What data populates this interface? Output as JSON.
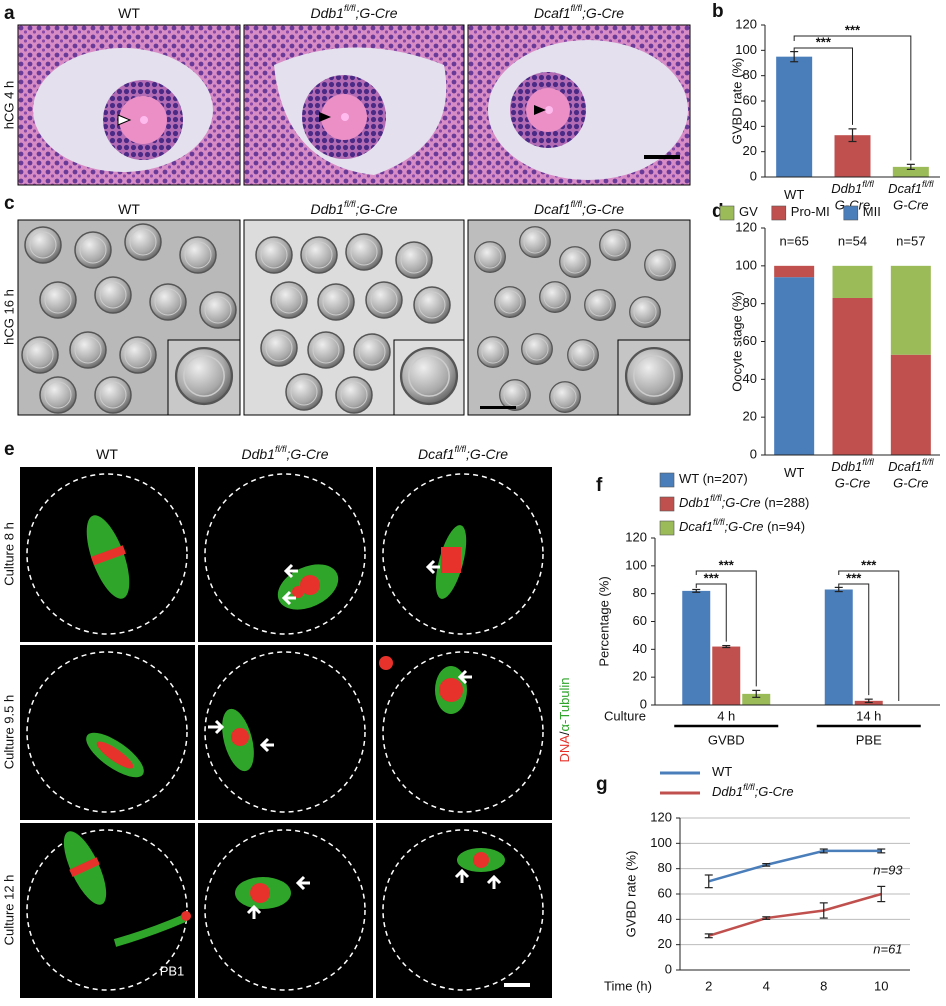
{
  "panel_a": {
    "label": "a",
    "row_label": "hCG 4 h"
  },
  "panel_c": {
    "label": "c",
    "row_label": "hCG 16 h"
  },
  "panel_e": {
    "label": "e",
    "row_labels": [
      "Culture 8 h",
      "Culture 9.5 h",
      "Culture 12 h"
    ],
    "stain": [
      "DNA",
      "/",
      "α-Tubulin"
    ],
    "pb_label": "PB1"
  },
  "genotypes": [
    {
      "name": "WT"
    },
    {
      "name": "Ddb1",
      "sup": "fl/fl",
      "suffix": ";G-Cre"
    },
    {
      "name": "Dcaf1",
      "sup": "fl/fl",
      "suffix": ";G-Cre"
    }
  ],
  "chart_data": [
    {
      "label": "b",
      "type": "bar",
      "ylabel": "GVBD rate (%)",
      "categories": [
        {
          "name": "WT"
        },
        {
          "name": "Ddb1",
          "sup": "fl/fl",
          "line2": "G-Cre"
        },
        {
          "name": "Dcaf1",
          "sup": "fl/fl",
          "line2": "G-Cre"
        }
      ],
      "values": [
        95,
        33,
        8
      ],
      "errors": [
        4,
        5,
        2
      ],
      "colors": [
        "#4a7ebb",
        "#c0504d",
        "#9bbb59"
      ],
      "ylim": [
        0,
        120
      ],
      "yticks": [
        0,
        20,
        40,
        60,
        80,
        100,
        120
      ],
      "annotations": [
        "***",
        "***"
      ]
    },
    {
      "label": "d",
      "type": "stacked_bar",
      "ylabel": "Oocyte stage (%)",
      "categories": [
        {
          "name": "WT"
        },
        {
          "name": "Ddb1",
          "sup": "fl/fl",
          "line2": "G-Cre"
        },
        {
          "name": "Dcaf1",
          "sup": "fl/fl",
          "line2": "G-Cre"
        }
      ],
      "series": [
        {
          "name": "MII",
          "color": "#4a7ebb",
          "values": [
            94,
            0,
            0
          ]
        },
        {
          "name": "Pro-MI",
          "color": "#c0504d",
          "values": [
            6,
            83,
            53
          ]
        },
        {
          "name": "GV",
          "color": "#9bbb59",
          "values": [
            0,
            17,
            47
          ]
        }
      ],
      "ylim": [
        0,
        120
      ],
      "yticks": [
        0,
        20,
        40,
        60,
        80,
        100,
        120
      ],
      "annotations": [
        "n=65",
        "n=54",
        "n=57"
      ]
    },
    {
      "label": "f",
      "type": "grouped_bar",
      "ylabel": "Percentage (%)",
      "x_row_label": "Culture",
      "categories": [
        "4 h",
        "14 h"
      ],
      "groups": [
        "GVBD",
        "PBE"
      ],
      "series": [
        {
          "name": "WT",
          "note": " (n=207)",
          "color": "#4a7ebb",
          "values": [
            82,
            83
          ],
          "errors": [
            1,
            1.5
          ]
        },
        {
          "name": "Ddb1",
          "sup": "fl/fl",
          "suffix": ";G-Cre",
          "note": " (n=288)",
          "color": "#c0504d",
          "values": [
            42,
            3
          ],
          "errors": [
            0.7,
            1.2
          ]
        },
        {
          "name": "Dcaf1",
          "sup": "fl/fl",
          "suffix": ";G-Cre",
          "note": " (n=94)",
          "color": "#9bbb59",
          "values": [
            8,
            0
          ],
          "errors": [
            2.5,
            0
          ]
        }
      ],
      "ylim": [
        0,
        120
      ],
      "yticks": [
        0,
        20,
        40,
        60,
        80,
        100,
        120
      ],
      "annotations": [
        "***",
        "***",
        "***",
        "***"
      ]
    },
    {
      "label": "g",
      "type": "line",
      "ylabel": "GVBD rate (%)",
      "xlabel": "Time (h)",
      "categories": [
        "2",
        "4",
        "8",
        "10"
      ],
      "series": [
        {
          "name": "WT",
          "color": "#4a7ebb",
          "values": [
            70,
            83,
            94,
            94
          ],
          "errors": [
            5,
            1,
            1.5,
            1.5
          ]
        },
        {
          "name": "Ddb1",
          "sup": "fl/fl",
          "suffix": ";G-Cre",
          "color": "#c0504d",
          "values": [
            27,
            41,
            47,
            60
          ],
          "errors": [
            1.5,
            1,
            6,
            6
          ]
        }
      ],
      "ylim": [
        0,
        120
      ],
      "yticks": [
        0,
        20,
        40,
        60,
        80,
        100,
        120
      ],
      "grid": true,
      "annotations": [
        "n=93",
        "n=61"
      ]
    }
  ]
}
